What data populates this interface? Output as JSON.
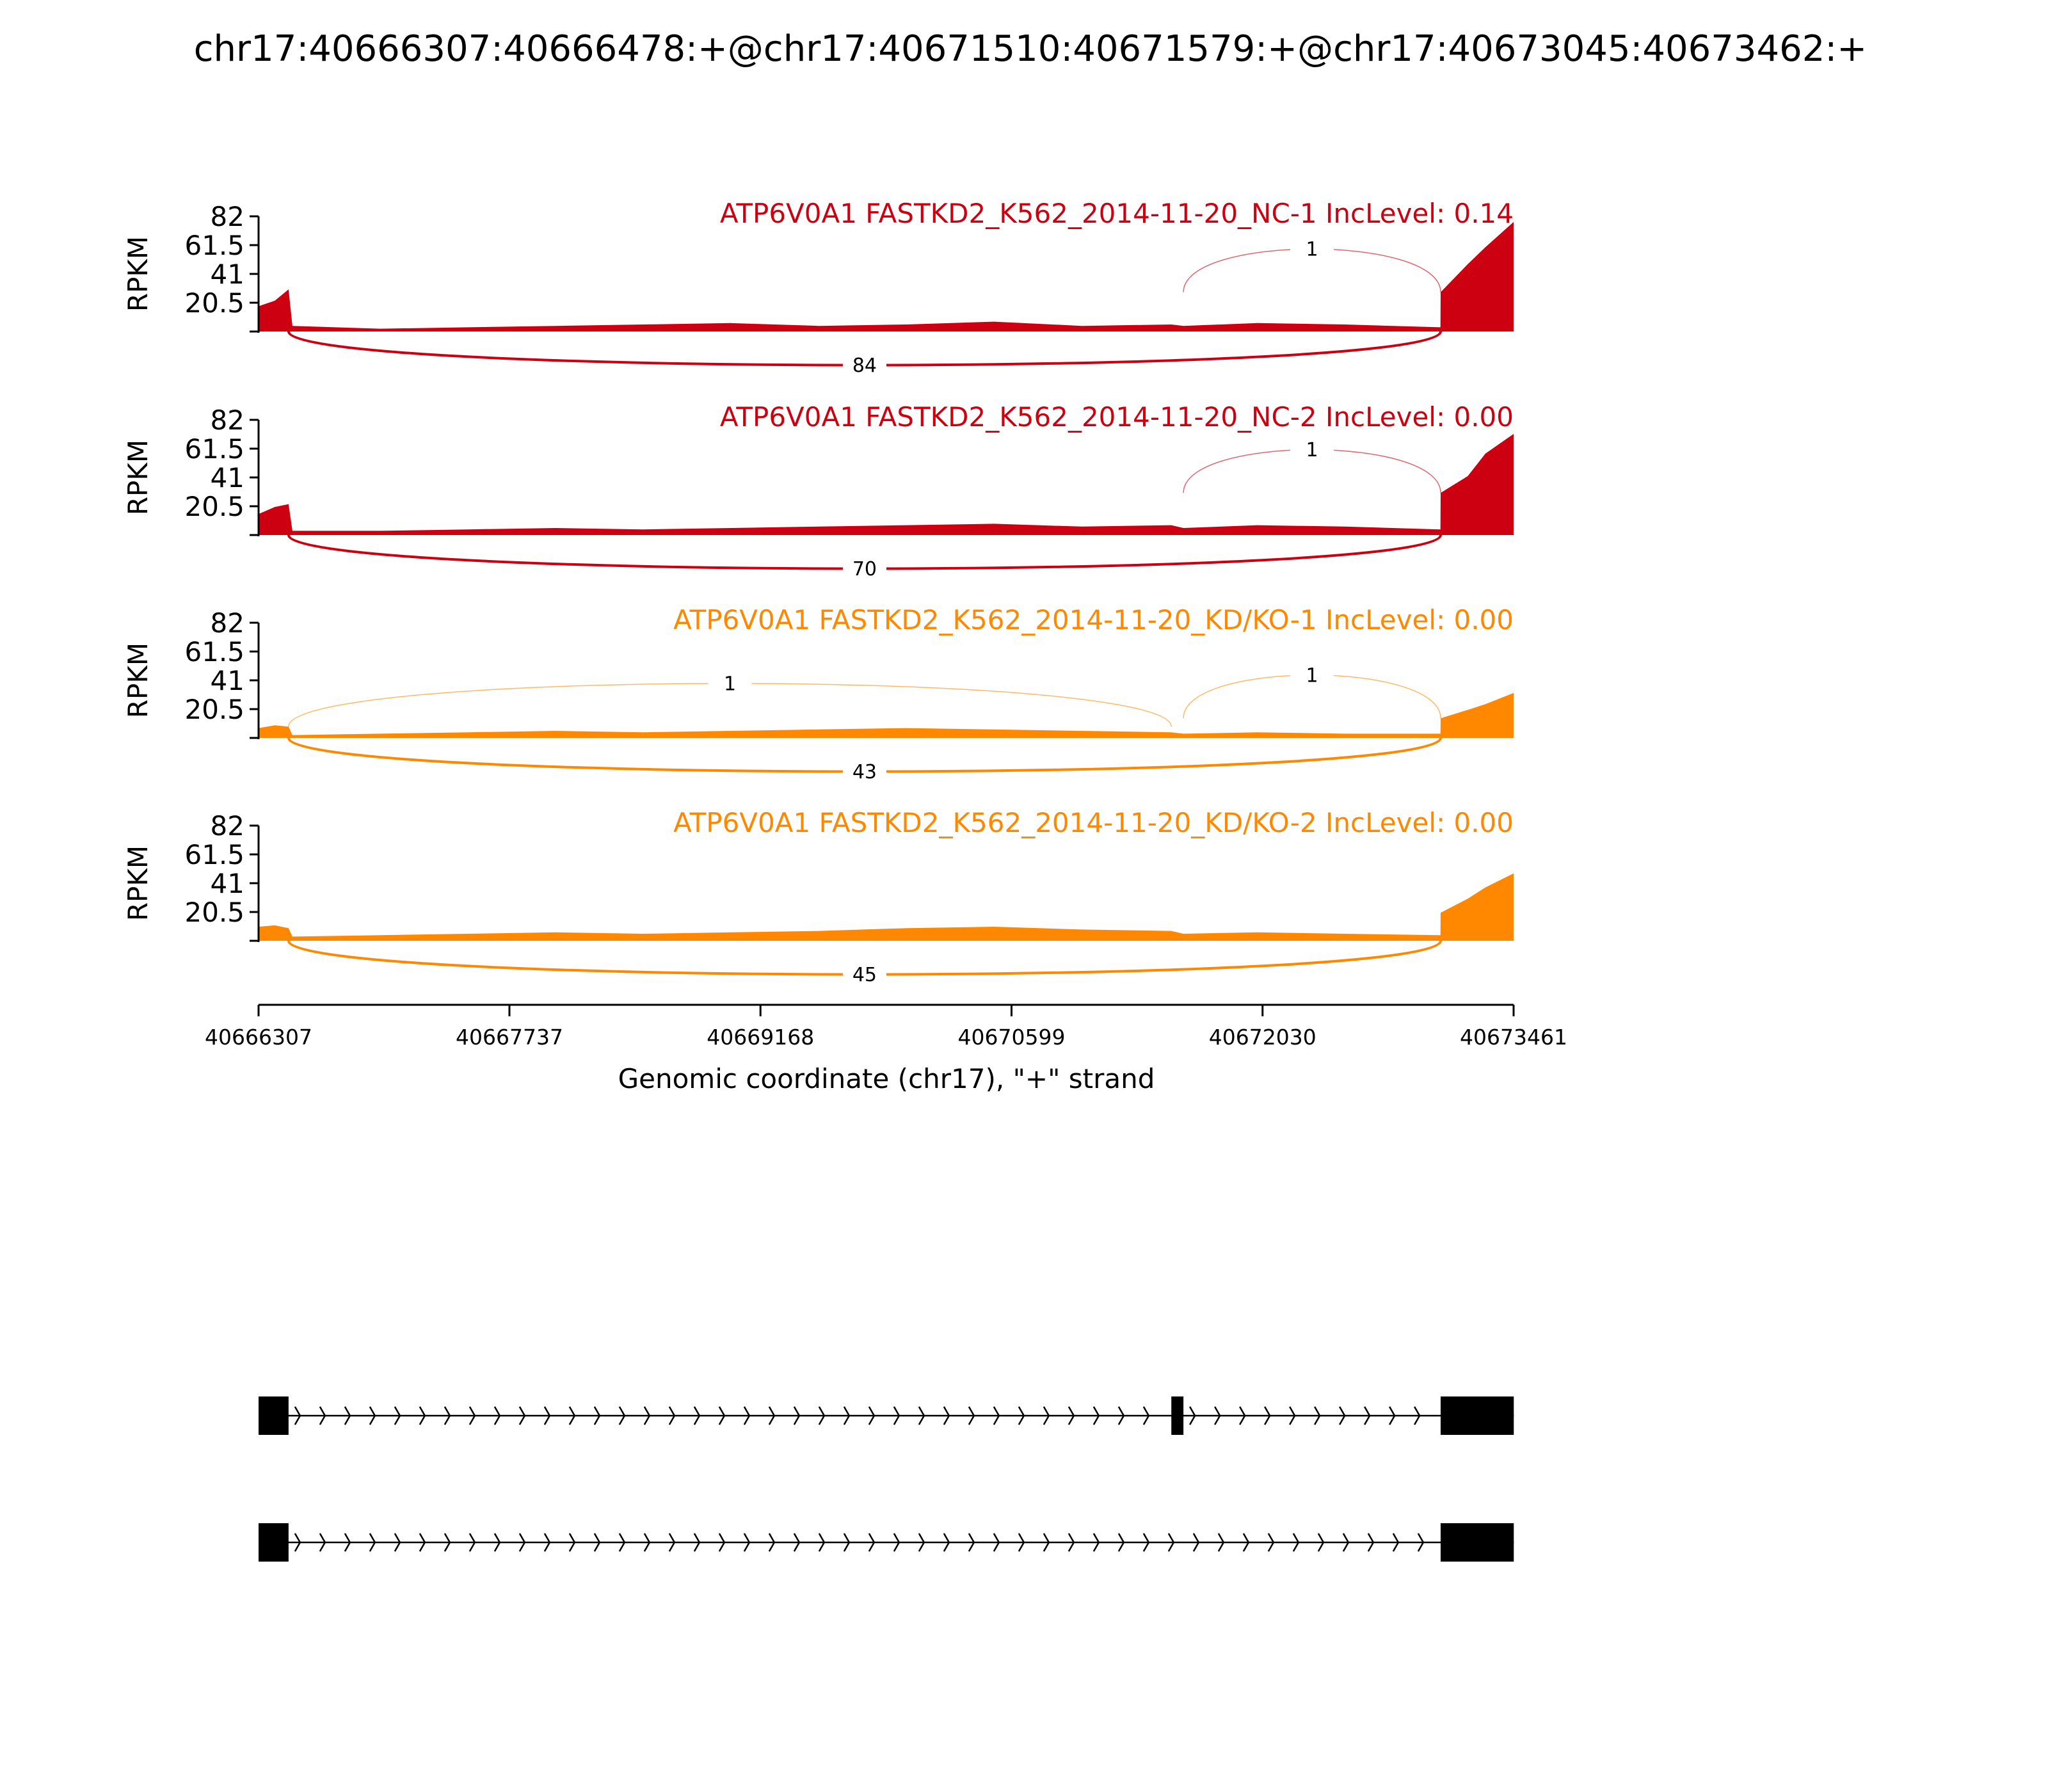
{
  "chart_data": {
    "type": "area",
    "title": "chr17:40666307:40666478:+@chr17:40671510:40671579:+@chr17:40673045:40673462:+",
    "xlabel": "Genomic coordinate (chr17), \"+\" strand",
    "ylabel": "RPKM",
    "xlim": [
      40666307,
      40673461
    ],
    "ylim": [
      0,
      82
    ],
    "x_ticks": [
      "40666307",
      "40667737",
      "40669168",
      "40670599",
      "40672030",
      "40673461"
    ],
    "y_ticks": [
      "82",
      "61.5",
      "41",
      "20.5"
    ],
    "grid": false,
    "exons": [
      [
        40666307,
        40666478
      ],
      [
        40671510,
        40671579
      ],
      [
        40673045,
        40673462
      ]
    ],
    "panels": [
      {
        "title": "ATP6V0A1 FASTKD2_K562_2014-11-20_NC-1 IncLevel: 0.14",
        "color": "#cc0011",
        "coverage": {
          "x": [
            40666307,
            40666400,
            40666478,
            40666500,
            40667000,
            40667500,
            40668000,
            40668500,
            40669000,
            40669500,
            40670000,
            40670500,
            40671000,
            40671510,
            40671579,
            40672000,
            40672500,
            40673044,
            40673045,
            40673200,
            40673300,
            40673461
          ],
          "y": [
            18,
            22,
            30,
            4,
            2,
            3,
            4,
            5,
            6,
            4,
            5,
            7,
            4,
            5,
            4,
            6,
            5,
            3,
            28,
            48,
            60,
            78
          ]
        },
        "junctions": [
          {
            "start": 40666478,
            "end": 40673045,
            "count": "84",
            "side": "below"
          },
          {
            "start": 40671579,
            "end": 40673045,
            "count": "1",
            "side": "above"
          }
        ]
      },
      {
        "title": "ATP6V0A1 FASTKD2_K562_2014-11-20_NC-2 IncLevel: 0.00",
        "color": "#cc0011",
        "coverage": {
          "x": [
            40666307,
            40666400,
            40666478,
            40666500,
            40667000,
            40667500,
            40668000,
            40668500,
            40669000,
            40669500,
            40670000,
            40670500,
            40671000,
            40671510,
            40671579,
            40672000,
            40672500,
            40673044,
            40673045,
            40673200,
            40673300,
            40673461
          ],
          "y": [
            15,
            20,
            22,
            3,
            3,
            4,
            5,
            4,
            5,
            6,
            7,
            8,
            6,
            7,
            5,
            7,
            6,
            4,
            30,
            42,
            58,
            72
          ]
        },
        "junctions": [
          {
            "start": 40666478,
            "end": 40673045,
            "count": "70",
            "side": "below"
          },
          {
            "start": 40671579,
            "end": 40673045,
            "count": "1",
            "side": "above"
          }
        ]
      },
      {
        "title": "ATP6V0A1 FASTKD2_K562_2014-11-20_KD/KO-1 IncLevel: 0.00",
        "color": "#ff8800",
        "coverage": {
          "x": [
            40666307,
            40666400,
            40666478,
            40666500,
            40667000,
            40667500,
            40668000,
            40668500,
            40669000,
            40669500,
            40670000,
            40670500,
            40671000,
            40671510,
            40671579,
            40672000,
            40672500,
            40673044,
            40673045,
            40673200,
            40673300,
            40673461
          ],
          "y": [
            7,
            9,
            8,
            2,
            3,
            4,
            5,
            4,
            5,
            6,
            7,
            6,
            5,
            4,
            3,
            4,
            3,
            3,
            14,
            20,
            24,
            32
          ]
        },
        "junctions": [
          {
            "start": 40666478,
            "end": 40673045,
            "count": "43",
            "side": "below"
          },
          {
            "start": 40666478,
            "end": 40671510,
            "count": "1",
            "side": "above"
          },
          {
            "start": 40671579,
            "end": 40673045,
            "count": "1",
            "side": "above"
          }
        ]
      },
      {
        "title": "ATP6V0A1 FASTKD2_K562_2014-11-20_KD/KO-2 IncLevel: 0.00",
        "color": "#ff8800",
        "coverage": {
          "x": [
            40666307,
            40666400,
            40666478,
            40666500,
            40667000,
            40667500,
            40668000,
            40668500,
            40669000,
            40669500,
            40670000,
            40670500,
            40671000,
            40671510,
            40671579,
            40672000,
            40672500,
            40673044,
            40673045,
            40673200,
            40673300,
            40673461
          ],
          "y": [
            10,
            11,
            9,
            3,
            4,
            5,
            6,
            5,
            6,
            7,
            9,
            10,
            8,
            7,
            5,
            6,
            5,
            4,
            20,
            30,
            38,
            48
          ]
        },
        "junctions": [
          {
            "start": 40666478,
            "end": 40673045,
            "count": "45",
            "side": "below"
          }
        ]
      }
    ],
    "transcripts": [
      {
        "exons": [
          [
            40666307,
            40666478
          ],
          [
            40671510,
            40671579
          ],
          [
            40673045,
            40673462
          ]
        ]
      },
      {
        "exons": [
          [
            40666307,
            40666478
          ],
          [
            40673045,
            40673462
          ]
        ]
      }
    ]
  }
}
